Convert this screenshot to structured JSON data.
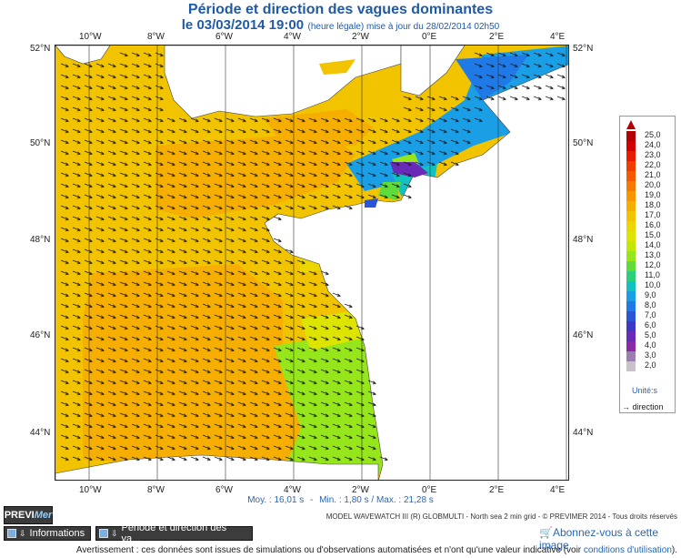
{
  "header": {
    "title": "Période et direction des vagues dominantes",
    "date": "le 03/03/2014 19:00",
    "update": "(heure légale) mise à jour du 28/02/2014 02h50"
  },
  "map": {
    "x_ticks": [
      "10°W",
      "8°W",
      "6°W",
      "4°W",
      "2°W",
      "0°E",
      "2°E",
      "4°E"
    ],
    "y_ticks": [
      "52°N",
      "50°N",
      "48°N",
      "46°N",
      "44°N"
    ],
    "ocean_color": "#f2c400",
    "land_color": "#ffffff"
  },
  "stats": {
    "mean": "Moy. : 16,01 s",
    "sep": "-",
    "min": "Min. : 1,80 s / Max. : 21,28 s"
  },
  "legend": {
    "values": [
      "25,0",
      "24,0",
      "23,0",
      "22,0",
      "21,0",
      "20,0",
      "19,0",
      "18,0",
      "17,0",
      "16,0",
      "15,0",
      "14,0",
      "13,0",
      "12,0",
      "11,0",
      "10,0",
      "9,0",
      "8,0",
      "7,0",
      "6,0",
      "5,0",
      "4,0",
      "3,0",
      "2,0"
    ],
    "colors": [
      "#b40000",
      "#d40000",
      "#e81a00",
      "#f03c00",
      "#f55a00",
      "#f77a00",
      "#f89600",
      "#f6ae00",
      "#f2c400",
      "#ecd600",
      "#dce400",
      "#c0e800",
      "#96e61c",
      "#5fdc3c",
      "#2cd07a",
      "#12c2c0",
      "#1a9ee6",
      "#1f7ae8",
      "#2a55d8",
      "#3c38c8",
      "#6a2ab8",
      "#8a2aa8",
      "#9a7fb0",
      "#c9c2c9"
    ],
    "unit": "Unité:s",
    "direction": "direction"
  },
  "brand": {
    "part1": "PREVI",
    "part2": "Mer"
  },
  "credits": "MODEL WAVEWATCH III (R) GLOBMULTI - North sea 2 min grid - © PREVIMER 2014 - Tous droits réservés",
  "tabs": {
    "info": "Informations",
    "current": "Période et direction des va..."
  },
  "subscribe": "Abonnez-vous à cette image",
  "warning": {
    "text": "Avertissement : ces données sont issues de simulations ou d'observations automatisées et n'ont qu'une valeur indicative (voir",
    "link": "conditions d'utilisation",
    "end": ")."
  }
}
